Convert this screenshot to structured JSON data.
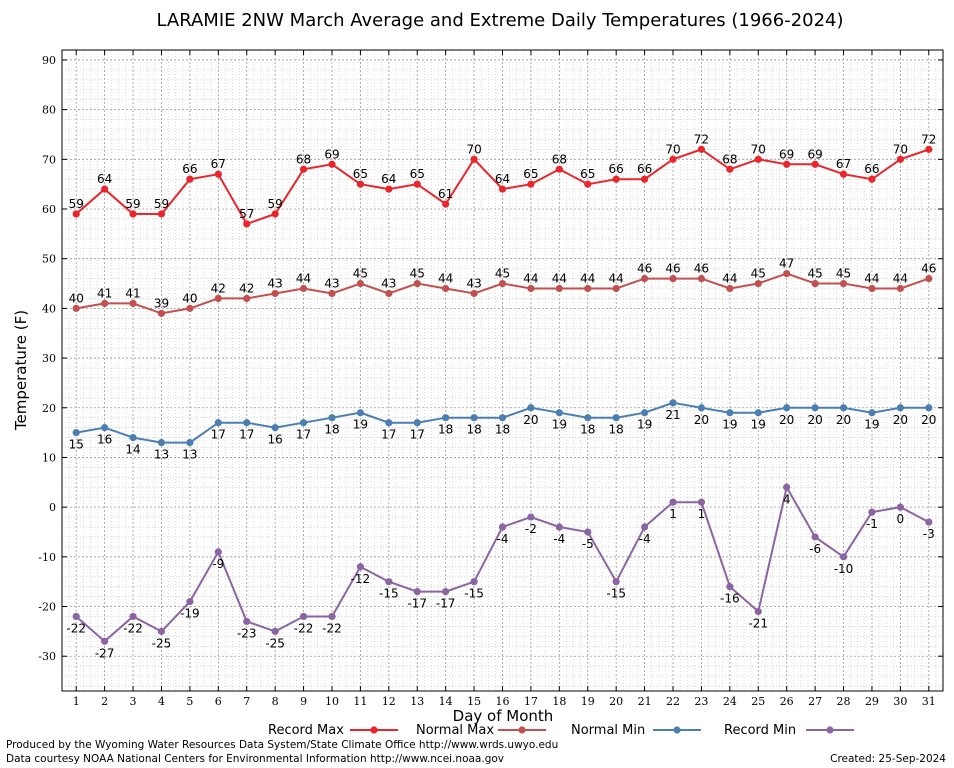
{
  "chart_data": {
    "type": "line",
    "title": "LARAMIE 2NW March Average and Extreme Daily Temperatures (1966-2024)",
    "xlabel": "Day of Month",
    "ylabel": "Temperature (F)",
    "x": [
      1,
      2,
      3,
      4,
      5,
      6,
      7,
      8,
      9,
      10,
      11,
      12,
      13,
      14,
      15,
      16,
      17,
      18,
      19,
      20,
      21,
      22,
      23,
      24,
      25,
      26,
      27,
      28,
      29,
      30,
      31
    ],
    "xlim": [
      0.5,
      31.5
    ],
    "ylim": [
      -37,
      92
    ],
    "yticks": [
      -30,
      -20,
      -10,
      0,
      10,
      20,
      30,
      40,
      50,
      60,
      70,
      80,
      90
    ],
    "grid": true,
    "legend_position": "bottom",
    "series": [
      {
        "name": "Record Max",
        "color": "#e8262b",
        "label_position": "above",
        "values": [
          59,
          64,
          59,
          59,
          66,
          67,
          57,
          59,
          68,
          69,
          65,
          64,
          65,
          61,
          70,
          64,
          65,
          68,
          65,
          66,
          66,
          70,
          72,
          68,
          70,
          69,
          69,
          67,
          66,
          70,
          72
        ]
      },
      {
        "name": "Normal Max",
        "color": "#c2504f",
        "label_position": "above",
        "values": [
          40,
          41,
          41,
          39,
          40,
          42,
          42,
          43,
          44,
          43,
          45,
          43,
          45,
          44,
          43,
          45,
          44,
          44,
          44,
          44,
          46,
          46,
          46,
          44,
          45,
          47,
          45,
          45,
          44,
          44,
          46
        ]
      },
      {
        "name": "Normal Min",
        "color": "#4b7fb2",
        "label_position": "below",
        "values": [
          15,
          16,
          14,
          13,
          13,
          17,
          17,
          16,
          17,
          18,
          19,
          17,
          17,
          18,
          18,
          18,
          20,
          19,
          18,
          18,
          19,
          21,
          20,
          19,
          19,
          20,
          20,
          20,
          19,
          20,
          20
        ]
      },
      {
        "name": "Record Min",
        "color": "#8b64a4",
        "label_position": "below",
        "values": [
          -22,
          -27,
          -22,
          -25,
          -19,
          -9,
          -23,
          -25,
          -22,
          -22,
          -12,
          -15,
          -17,
          -17,
          -15,
          -4,
          -2,
          -4,
          -5,
          -15,
          -4,
          1,
          1,
          -16,
          -21,
          4,
          -6,
          -10,
          -1,
          0,
          -3
        ]
      }
    ]
  },
  "footer": {
    "line1": "Produced by the Wyoming Water Resources Data System/State Climate Office http://www.wrds.uwyo.edu",
    "line2": "Data courtesy NOAA National Centers for Environmental Information http://www.ncei.noaa.gov",
    "created": "Created:  25-Sep-2024"
  }
}
